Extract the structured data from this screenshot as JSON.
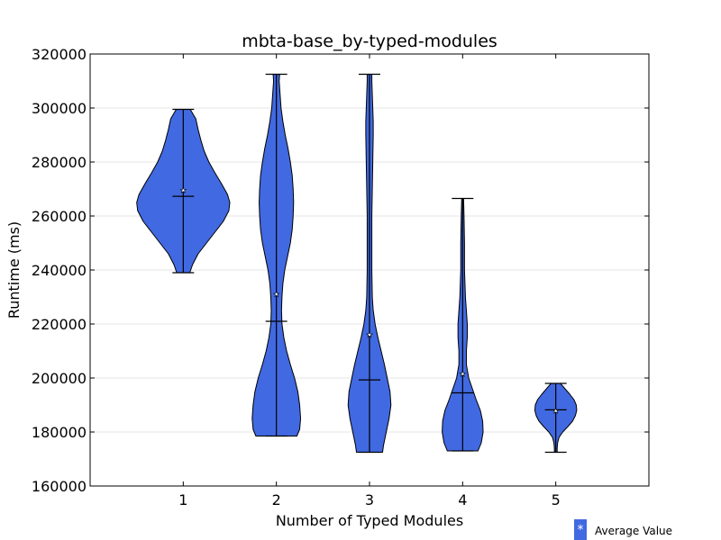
{
  "chart_data": {
    "type": "violin",
    "title": "mbta-base_by-typed-modules",
    "xlabel": "Number of Typed Modules",
    "ylabel": "Runtime (ms)",
    "xlim": [
      0,
      6
    ],
    "ylim": [
      160000,
      320000
    ],
    "xticks": [
      "1",
      "2",
      "3",
      "4",
      "5"
    ],
    "yticks": [
      "160000",
      "180000",
      "200000",
      "220000",
      "240000",
      "260000",
      "280000",
      "300000",
      "320000"
    ],
    "grid": "horizontal",
    "colors": {
      "body": "#4169E1",
      "edge": "#000000"
    },
    "legend": {
      "marker": "*",
      "label": "Average Value",
      "placement": "below-right"
    },
    "series": [
      {
        "x": 1,
        "min": 239000,
        "max": 299500,
        "median": 267300,
        "mean": 269500,
        "density": [
          [
            239000,
            0.14
          ],
          [
            242000,
            0.2
          ],
          [
            246000,
            0.32
          ],
          [
            250000,
            0.5
          ],
          [
            254000,
            0.68
          ],
          [
            258000,
            0.86
          ],
          [
            262000,
            0.98
          ],
          [
            265000,
            1.0
          ],
          [
            268000,
            0.95
          ],
          [
            272000,
            0.82
          ],
          [
            276000,
            0.68
          ],
          [
            280000,
            0.55
          ],
          [
            284000,
            0.45
          ],
          [
            288000,
            0.38
          ],
          [
            292000,
            0.32
          ],
          [
            296000,
            0.27
          ],
          [
            299500,
            0.15
          ]
        ]
      },
      {
        "x": 2,
        "min": 178500,
        "max": 312500,
        "median": 221000,
        "mean": 231000,
        "density": [
          [
            178500,
            0.44
          ],
          [
            181000,
            0.5
          ],
          [
            185000,
            0.52
          ],
          [
            190000,
            0.5
          ],
          [
            195000,
            0.46
          ],
          [
            200000,
            0.39
          ],
          [
            205000,
            0.3
          ],
          [
            210000,
            0.22
          ],
          [
            215000,
            0.16
          ],
          [
            220000,
            0.12
          ],
          [
            225000,
            0.11
          ],
          [
            230000,
            0.12
          ],
          [
            235000,
            0.14
          ],
          [
            240000,
            0.18
          ],
          [
            245000,
            0.24
          ],
          [
            250000,
            0.3
          ],
          [
            255000,
            0.34
          ],
          [
            260000,
            0.36
          ],
          [
            265000,
            0.37
          ],
          [
            270000,
            0.36
          ],
          [
            275000,
            0.34
          ],
          [
            280000,
            0.3
          ],
          [
            285000,
            0.25
          ],
          [
            290000,
            0.19
          ],
          [
            295000,
            0.14
          ],
          [
            300000,
            0.1
          ],
          [
            305000,
            0.08
          ],
          [
            310000,
            0.06
          ],
          [
            312500,
            0.07
          ]
        ]
      },
      {
        "x": 3,
        "min": 172500,
        "max": 312500,
        "median": 199300,
        "mean": 216000,
        "density": [
          [
            172500,
            0.28
          ],
          [
            175000,
            0.3
          ],
          [
            180000,
            0.36
          ],
          [
            185000,
            0.42
          ],
          [
            190000,
            0.46
          ],
          [
            195000,
            0.44
          ],
          [
            200000,
            0.38
          ],
          [
            205000,
            0.32
          ],
          [
            210000,
            0.25
          ],
          [
            215000,
            0.18
          ],
          [
            220000,
            0.12
          ],
          [
            225000,
            0.08
          ],
          [
            230000,
            0.06
          ],
          [
            240000,
            0.05
          ],
          [
            250000,
            0.05
          ],
          [
            260000,
            0.05
          ],
          [
            270000,
            0.06
          ],
          [
            280000,
            0.07
          ],
          [
            290000,
            0.08
          ],
          [
            295000,
            0.08
          ],
          [
            300000,
            0.07
          ],
          [
            305000,
            0.06
          ],
          [
            310000,
            0.05
          ],
          [
            312500,
            0.05
          ]
        ]
      },
      {
        "x": 4,
        "min": 173000,
        "max": 266500,
        "median": 194500,
        "mean": 201500,
        "density": [
          [
            173000,
            0.33
          ],
          [
            176000,
            0.4
          ],
          [
            180000,
            0.44
          ],
          [
            184000,
            0.43
          ],
          [
            188000,
            0.38
          ],
          [
            192000,
            0.29
          ],
          [
            196000,
            0.21
          ],
          [
            200000,
            0.13
          ],
          [
            205000,
            0.08
          ],
          [
            210000,
            0.08
          ],
          [
            215000,
            0.1
          ],
          [
            220000,
            0.1
          ],
          [
            225000,
            0.08
          ],
          [
            230000,
            0.06
          ],
          [
            235000,
            0.05
          ],
          [
            240000,
            0.04
          ],
          [
            250000,
            0.04
          ],
          [
            260000,
            0.03
          ],
          [
            266500,
            0.02
          ]
        ]
      },
      {
        "x": 5,
        "min": 172500,
        "max": 198000,
        "median": 188200,
        "mean": 187800,
        "density": [
          [
            172500,
            0.03
          ],
          [
            174000,
            0.03
          ],
          [
            176000,
            0.04
          ],
          [
            178000,
            0.07
          ],
          [
            180000,
            0.15
          ],
          [
            182000,
            0.26
          ],
          [
            184000,
            0.36
          ],
          [
            186000,
            0.42
          ],
          [
            188000,
            0.45
          ],
          [
            190000,
            0.44
          ],
          [
            192000,
            0.39
          ],
          [
            194000,
            0.3
          ],
          [
            196000,
            0.2
          ],
          [
            198000,
            0.1
          ]
        ]
      }
    ]
  }
}
